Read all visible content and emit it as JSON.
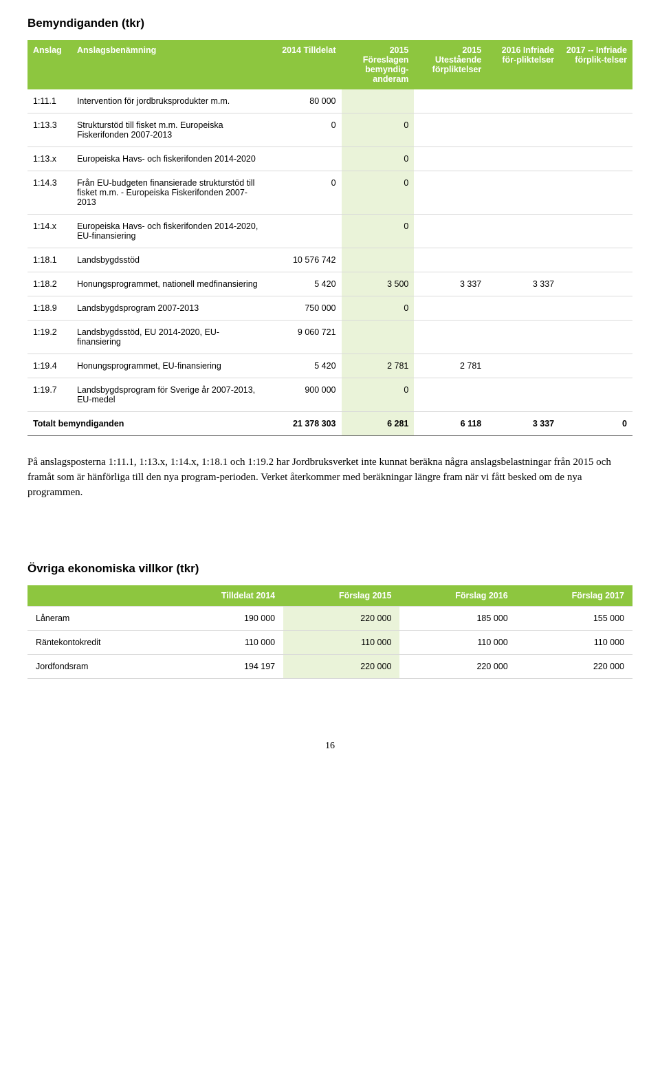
{
  "table1": {
    "title": "Bemyndiganden (tkr)",
    "headers": [
      "Anslag",
      "Anslagsbenämning",
      "2014 Tilldelat",
      "2015 Föreslagen bemyndig-anderam",
      "2015 Utestående förpliktelser",
      "2016 Infriade för-pliktelser",
      "2017 -- Infriade förplik-telser"
    ],
    "rows": [
      {
        "id": "1:11.1",
        "name": "Intervention för jordbruksprodukter m.m.",
        "v": [
          "80 000",
          "",
          "",
          "",
          ""
        ]
      },
      {
        "id": "1:13.3",
        "name": "Strukturstöd till fisket m.m. Europeiska Fiskerifonden 2007-2013",
        "v": [
          "0",
          "0",
          "",
          "",
          ""
        ]
      },
      {
        "id": "1:13.x",
        "name": "Europeiska Havs- och fiskerifonden 2014-2020",
        "v": [
          "",
          "0",
          "",
          "",
          ""
        ]
      },
      {
        "id": "1:14.3",
        "name": "Från EU-budgeten finansierade strukturstöd till fisket m.m. - Europeiska Fiskerifonden 2007-2013",
        "v": [
          "0",
          "0",
          "",
          "",
          ""
        ]
      },
      {
        "id": "1:14.x",
        "name": "Europeiska Havs- och fiskerifonden 2014-2020, EU-finansiering",
        "v": [
          "",
          "0",
          "",
          "",
          ""
        ]
      },
      {
        "id": "1:18.1",
        "name": "Landsbygdsstöd",
        "v": [
          "10 576 742",
          "",
          "",
          "",
          ""
        ]
      },
      {
        "id": "1:18.2",
        "name": "Honungsprogrammet, nationell medfinansiering",
        "v": [
          "5 420",
          "3 500",
          "3 337",
          "3 337",
          ""
        ]
      },
      {
        "id": "1:18.9",
        "name": "Landsbygdsprogram 2007-2013",
        "v": [
          "750 000",
          "0",
          "",
          "",
          ""
        ]
      },
      {
        "id": "1:19.2",
        "name": "Landsbygdsstöd, EU 2014-2020, EU-finansiering",
        "v": [
          "9 060 721",
          "",
          "",
          "",
          ""
        ]
      },
      {
        "id": "1:19.4",
        "name": "Honungsprogrammet, EU-finansiering",
        "v": [
          "5 420",
          "2 781",
          "2 781",
          "",
          ""
        ]
      },
      {
        "id": "1:19.7",
        "name": "Landsbygdsprogram för Sverige år 2007-2013, EU-medel",
        "v": [
          "900 000",
          "0",
          "",
          "",
          ""
        ]
      }
    ],
    "totals": {
      "label": "Totalt bemyndiganden",
      "v": [
        "21 378 303",
        "6 281",
        "6 118",
        "3 337",
        "0"
      ]
    },
    "highlight_col_index": 3,
    "colors": {
      "header_bg": "#8dc63f",
      "header_fg": "#ffffff",
      "highlight_bg": "#eaf3d9",
      "row_border": "#d9d9d9"
    }
  },
  "paragraph": "På anslagsposterna 1:11.1, 1:13.x, 1:14.x, 1:18.1 och 1:19.2 har Jordbruksverket inte kunnat beräkna några anslagsbelastningar från 2015 och framåt som är hänförliga till den nya program-perioden. Verket återkommer med beräkningar längre fram när vi fått besked om de nya programmen.",
  "table2": {
    "title": "Övriga ekonomiska villkor (tkr)",
    "headers": [
      "",
      "Tilldelat 2014",
      "Förslag 2015",
      "Förslag 2016",
      "Förslag 2017"
    ],
    "rows": [
      {
        "label": "Låneram",
        "v": [
          "190 000",
          "220 000",
          "185 000",
          "155 000"
        ]
      },
      {
        "label": "Räntekontokredit",
        "v": [
          "110 000",
          "110 000",
          "110 000",
          "110 000"
        ]
      },
      {
        "label": "Jordfondsram",
        "v": [
          "194 197",
          "220 000",
          "220 000",
          "220 000"
        ]
      }
    ],
    "highlight_col_index": 2,
    "colors": {
      "header_bg": "#8dc63f",
      "header_fg": "#ffffff",
      "highlight_bg": "#eaf3d9",
      "row_border": "#d9d9d9"
    }
  },
  "page_number": "16"
}
